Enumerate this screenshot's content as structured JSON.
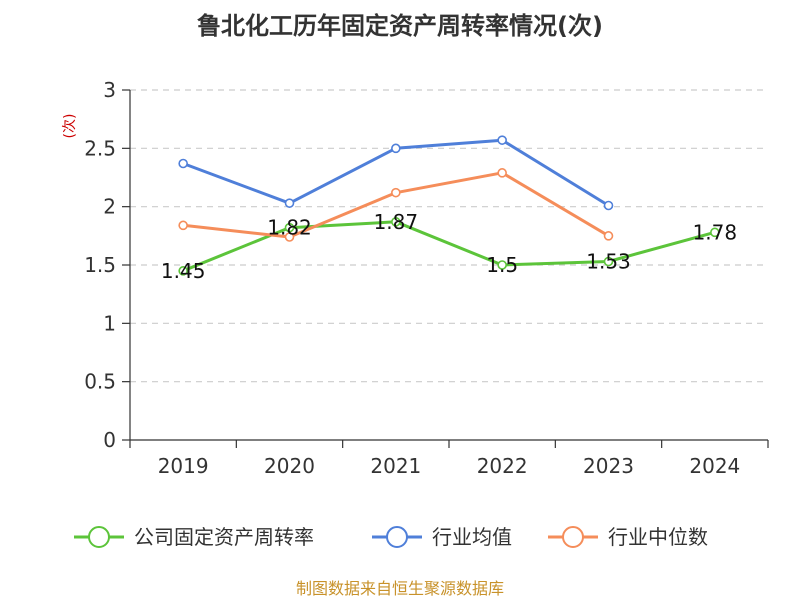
{
  "chart_data": {
    "type": "line",
    "title": "鲁北化工历年固定资产周转率情况(次)",
    "ylabel": "(次)",
    "xlabel": "",
    "categories": [
      "2019",
      "2020",
      "2021",
      "2022",
      "2023",
      "2024"
    ],
    "ylim": [
      0,
      3
    ],
    "yticks": [
      0,
      0.5,
      1,
      1.5,
      2,
      2.5,
      3
    ],
    "ytick_labels": [
      "0",
      "0.5",
      "1",
      "1.5",
      "2",
      "2.5",
      "3"
    ],
    "grid": true,
    "legend_position": "bottom",
    "series": [
      {
        "name": "公司固定资产周转率",
        "color": "#5cc43a",
        "values": [
          1.45,
          1.82,
          1.87,
          1.5,
          1.53,
          1.78
        ],
        "labels": [
          "1.45",
          "1.82",
          "1.87",
          "1.5",
          "1.53",
          "1.78"
        ]
      },
      {
        "name": "行业均值",
        "color": "#4f7fd9",
        "values": [
          2.37,
          2.03,
          2.5,
          2.57,
          2.01,
          null
        ]
      },
      {
        "name": "行业中位数",
        "color": "#f58d5a",
        "values": [
          1.84,
          1.74,
          2.12,
          2.29,
          1.75,
          null
        ]
      }
    ]
  },
  "source": "制图数据来自恒生聚源数据库",
  "colors": {
    "axis": "#333333",
    "grid": "#cccccc",
    "source": "#c8922a"
  }
}
